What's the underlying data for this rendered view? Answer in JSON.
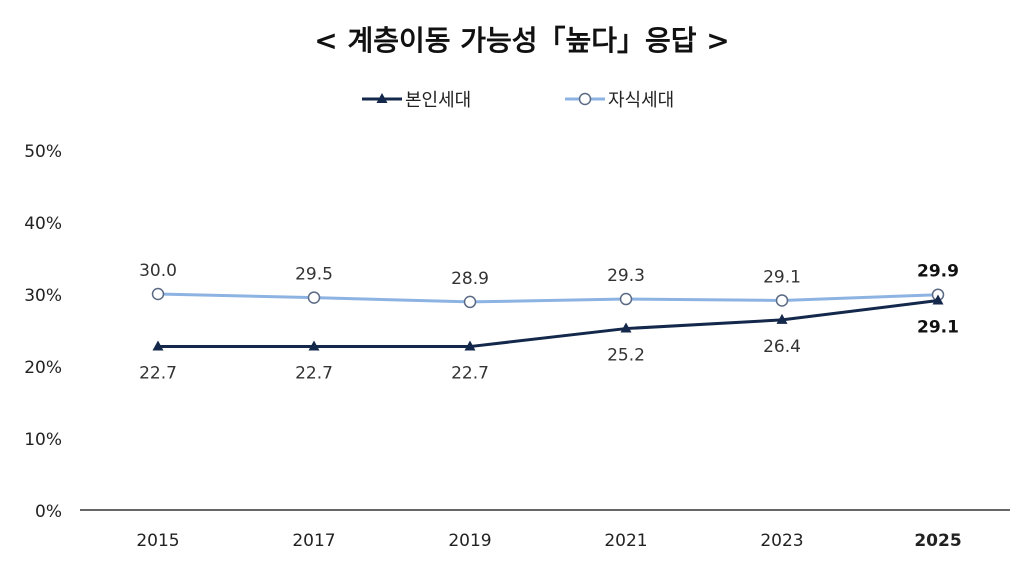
{
  "chart_data": {
    "type": "line",
    "title": "< 계층이동 가능성「높다」응답 >",
    "categories": [
      "2015",
      "2017",
      "2019",
      "2021",
      "2023",
      "2025"
    ],
    "series": [
      {
        "name": "본인세대",
        "values": [
          22.7,
          22.7,
          22.7,
          25.2,
          26.4,
          29.1
        ],
        "color": "#14284b",
        "marker": "triangle",
        "label_position": "below"
      },
      {
        "name": "자식세대",
        "values": [
          30.0,
          29.5,
          28.9,
          29.3,
          29.1,
          29.9
        ],
        "color": "#8db3e2",
        "marker": "open-circle",
        "label_position": "above"
      }
    ],
    "value_labels": [
      [
        "22.7",
        "22.7",
        "22.7",
        "25.2",
        "26.4",
        "29.1"
      ],
      [
        "30.0",
        "29.5",
        "28.9",
        "29.3",
        "29.1",
        "29.9"
      ]
    ],
    "ylim": [
      0,
      50
    ],
    "yticks": [
      "0%",
      "10%",
      "20%",
      "30%",
      "40%",
      "50%"
    ],
    "ytick_values": [
      0,
      10,
      20,
      30,
      40,
      50
    ],
    "highlight_category": "2025",
    "grid": false,
    "legend": "top-center",
    "xlabel": "",
    "ylabel": ""
  }
}
